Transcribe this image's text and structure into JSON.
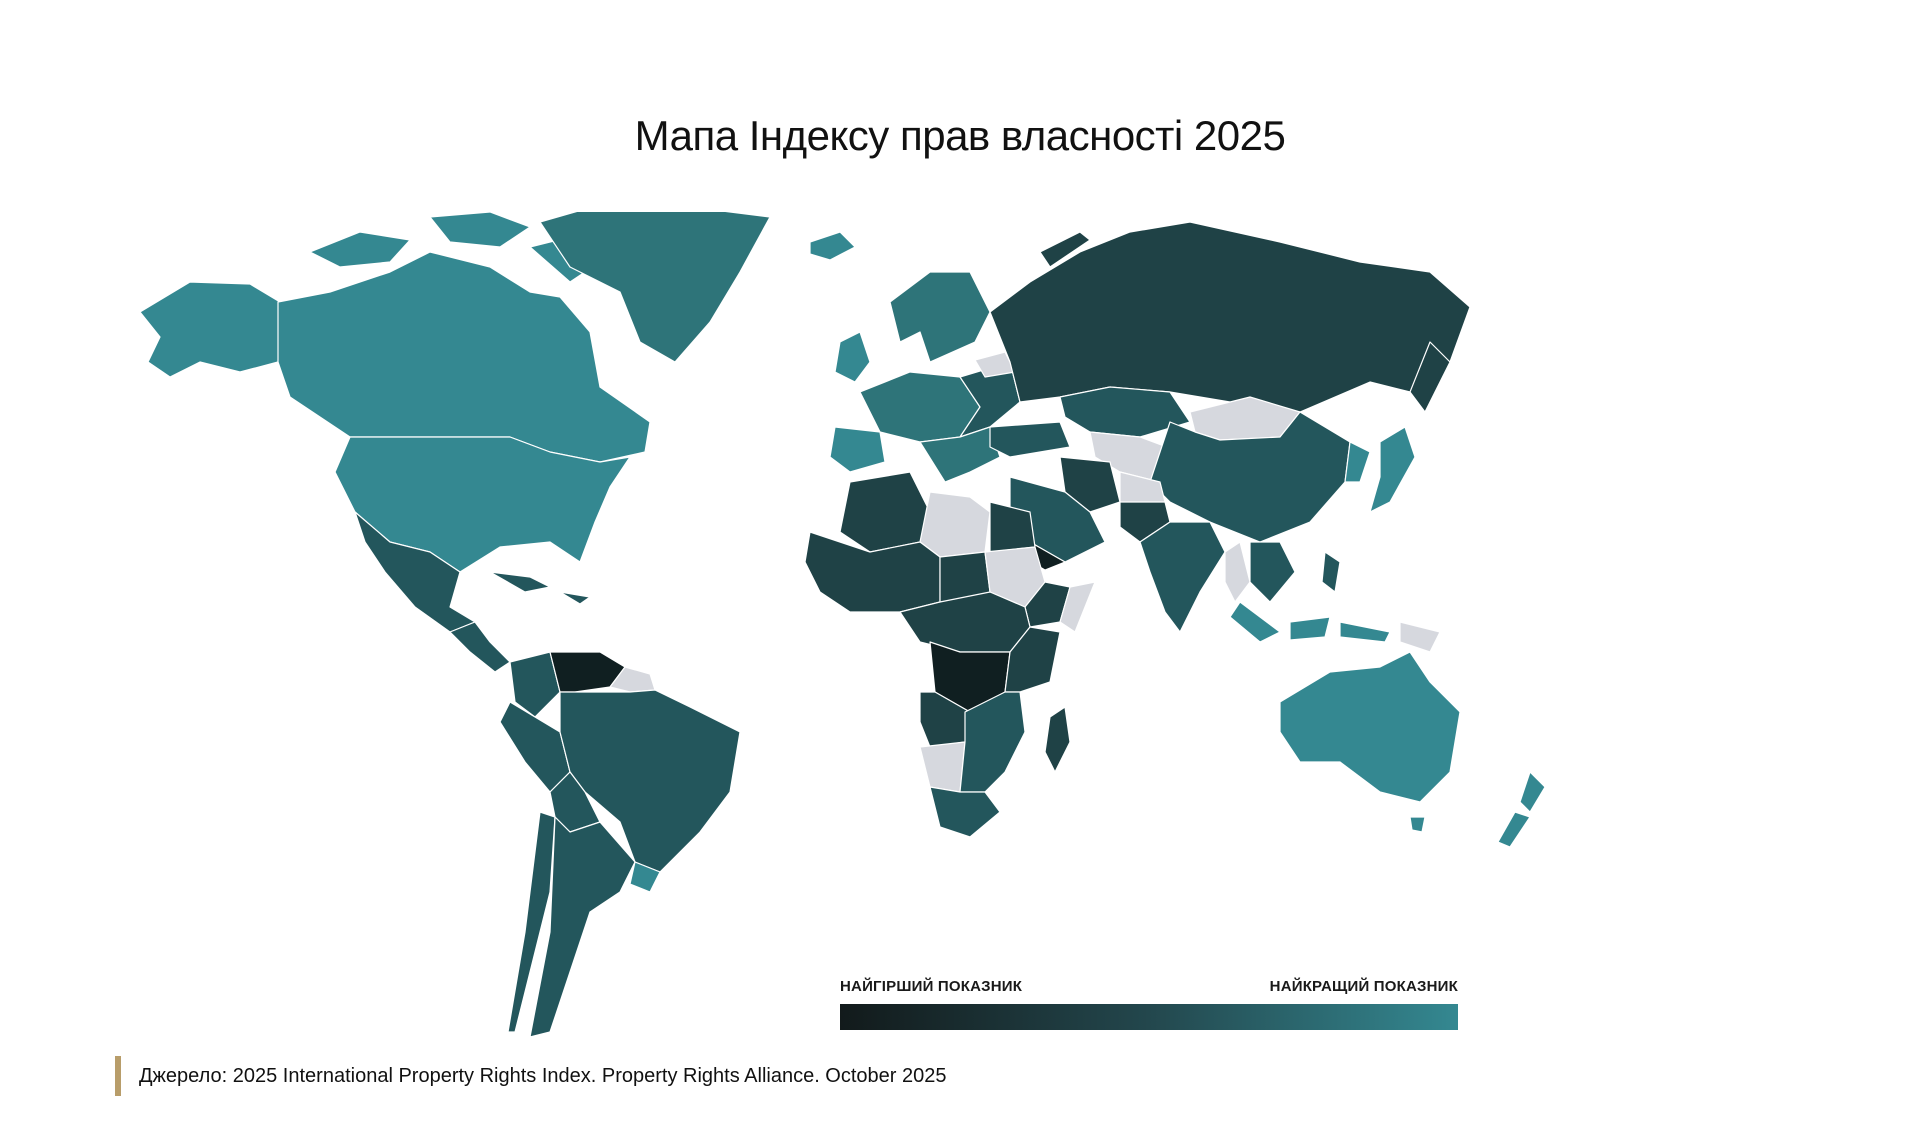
{
  "title": "Мапа Індексу прав власності 2025",
  "legend": {
    "min_label": "НАЙГІРШИЙ ПОКАЗНИК",
    "max_label": "НАЙКРАЩИЙ ПОКАЗНИК",
    "gradient_colors": [
      "#121a1b",
      "#23474d",
      "#348891"
    ]
  },
  "colors": {
    "best": "#348891",
    "high": "#2e7479",
    "mid": "#23565c",
    "low": "#1f4246",
    "worst": "#101f21",
    "no_data": "#d6d8de"
  },
  "regions": [
    {
      "name": "Canada",
      "level": "best"
    },
    {
      "name": "United States",
      "level": "best"
    },
    {
      "name": "Greenland",
      "level": "high"
    },
    {
      "name": "Mexico",
      "level": "mid"
    },
    {
      "name": "Venezuela",
      "level": "worst"
    },
    {
      "name": "Brazil",
      "level": "mid"
    },
    {
      "name": "Argentina",
      "level": "mid"
    },
    {
      "name": "Europe",
      "level": "high"
    },
    {
      "name": "Russia",
      "level": "low"
    },
    {
      "name": "China",
      "level": "mid"
    },
    {
      "name": "Mongolia",
      "level": "no_data"
    },
    {
      "name": "India",
      "level": "mid"
    },
    {
      "name": "Japan",
      "level": "best"
    },
    {
      "name": "Australia",
      "level": "best"
    },
    {
      "name": "New Zealand",
      "level": "best"
    },
    {
      "name": "Libya",
      "level": "no_data"
    },
    {
      "name": "Sudan",
      "level": "no_data"
    },
    {
      "name": "DR Congo",
      "level": "worst"
    },
    {
      "name": "South Africa",
      "level": "mid"
    },
    {
      "name": "Madagascar",
      "level": "low"
    }
  ],
  "source": "Джерело: 2025 International Property Rights Index. Property Rights Alliance. October 2025"
}
